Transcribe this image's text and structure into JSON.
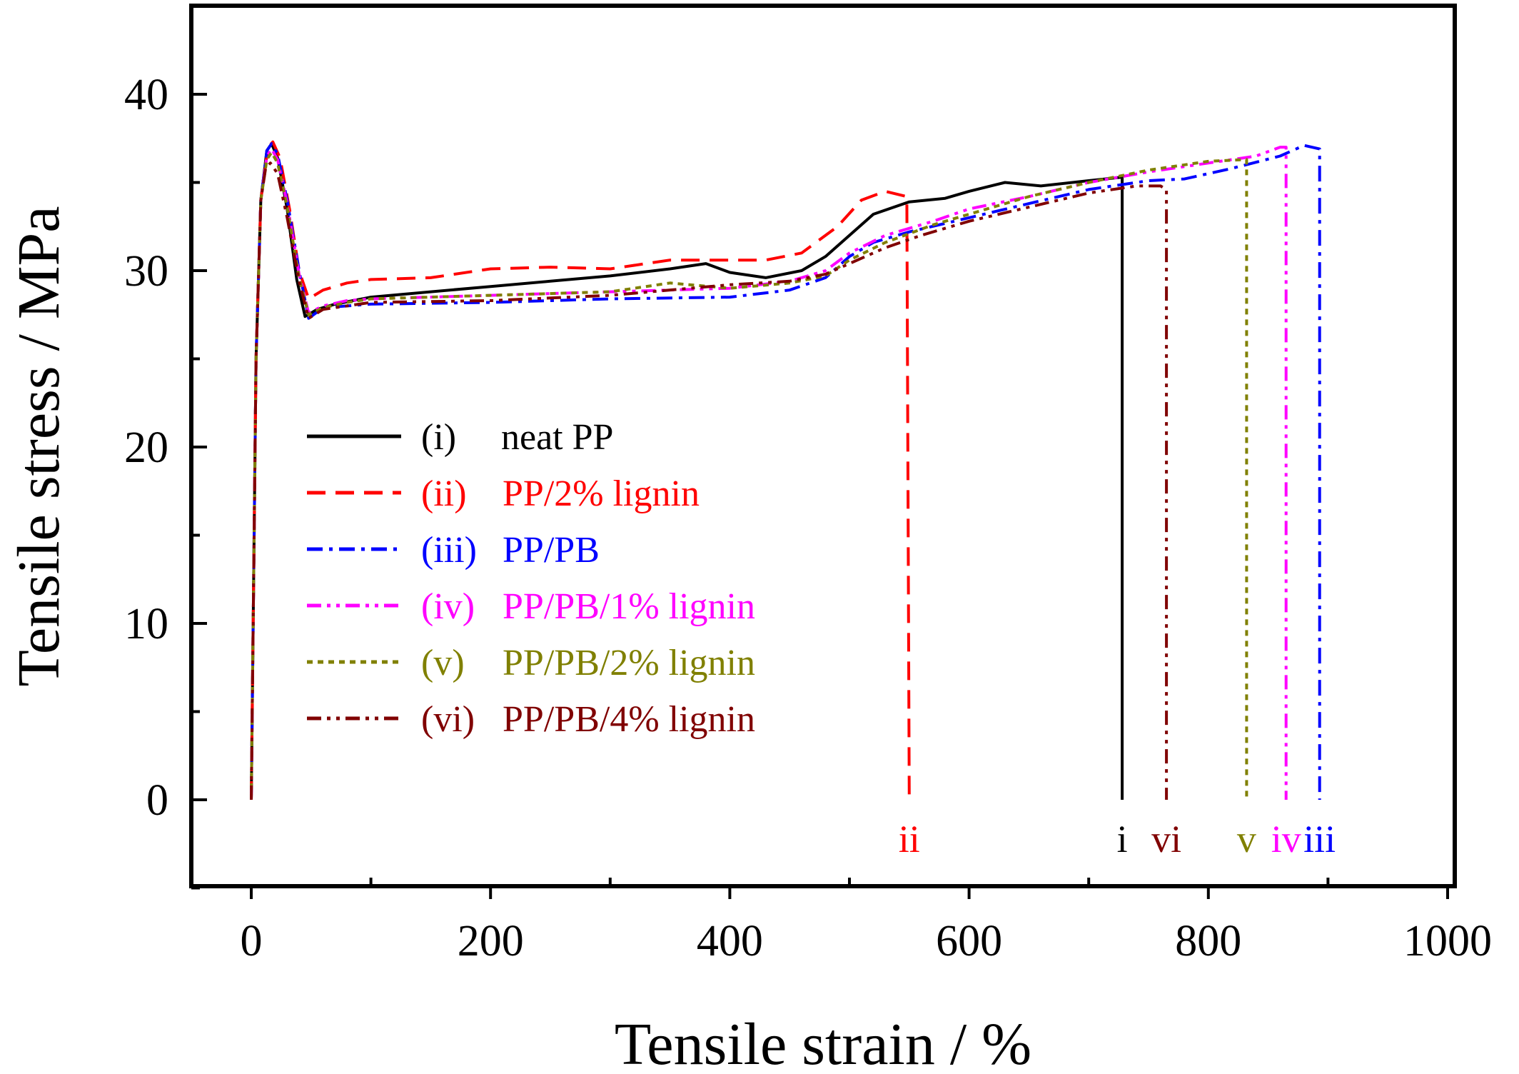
{
  "chart_data": {
    "type": "line",
    "title": "",
    "xlabel": "Tensile strain / %",
    "ylabel": "Tensile stress / MPa",
    "xlim": [
      -50,
      1000
    ],
    "ylim": [
      -5,
      45
    ],
    "xticks": [
      0,
      200,
      400,
      600,
      800,
      1000
    ],
    "xtick_labels": [
      "0",
      "200",
      "400",
      "600",
      "800",
      "1000"
    ],
    "yticks": [
      0,
      10,
      20,
      30,
      40
    ],
    "ytick_labels": [
      "0",
      "10",
      "20",
      "30",
      "40"
    ],
    "grid": false,
    "legend_position": "center-left",
    "series": [
      {
        "name": "neat PP",
        "legend_id": "(i)",
        "end_label": "i",
        "color": "#000000",
        "dash": "solid",
        "points": [
          [
            0,
            0
          ],
          [
            4,
            25
          ],
          [
            8,
            34
          ],
          [
            13,
            36.8
          ],
          [
            17,
            37.2
          ],
          [
            22,
            36.4
          ],
          [
            30,
            33.5
          ],
          [
            38,
            29.5
          ],
          [
            45,
            27.4
          ],
          [
            55,
            27.8
          ],
          [
            70,
            28.1
          ],
          [
            100,
            28.5
          ],
          [
            150,
            28.8
          ],
          [
            200,
            29.1
          ],
          [
            250,
            29.4
          ],
          [
            300,
            29.7
          ],
          [
            350,
            30.1
          ],
          [
            380,
            30.4
          ],
          [
            400,
            29.9
          ],
          [
            430,
            29.6
          ],
          [
            460,
            30
          ],
          [
            480,
            30.8
          ],
          [
            500,
            32
          ],
          [
            520,
            33.2
          ],
          [
            550,
            33.9
          ],
          [
            580,
            34.1
          ],
          [
            600,
            34.5
          ],
          [
            630,
            35
          ],
          [
            660,
            34.8
          ],
          [
            700,
            35.1
          ],
          [
            728,
            35.3
          ],
          [
            728,
            0
          ]
        ]
      },
      {
        "name": "PP/2% lignin",
        "legend_id": "(ii)",
        "end_label": "ii",
        "color": "#ff0000",
        "dash": "dashed",
        "points": [
          [
            0,
            0
          ],
          [
            4,
            25
          ],
          [
            8,
            34
          ],
          [
            14,
            37
          ],
          [
            18,
            37.3
          ],
          [
            24,
            36.4
          ],
          [
            32,
            33.5
          ],
          [
            40,
            30
          ],
          [
            48,
            28.4
          ],
          [
            60,
            28.9
          ],
          [
            80,
            29.3
          ],
          [
            100,
            29.5
          ],
          [
            150,
            29.6
          ],
          [
            200,
            30.1
          ],
          [
            250,
            30.2
          ],
          [
            300,
            30.1
          ],
          [
            350,
            30.6
          ],
          [
            400,
            30.6
          ],
          [
            430,
            30.6
          ],
          [
            460,
            31
          ],
          [
            490,
            32.5
          ],
          [
            510,
            34
          ],
          [
            530,
            34.5
          ],
          [
            548,
            34.2
          ],
          [
            550,
            0
          ]
        ]
      },
      {
        "name": "PP/PB",
        "legend_id": "(iii)",
        "end_label": "iii",
        "color": "#0000ff",
        "dash": "dashdot",
        "points": [
          [
            0,
            0
          ],
          [
            4,
            25
          ],
          [
            8,
            34
          ],
          [
            13,
            36.8
          ],
          [
            17,
            37.2
          ],
          [
            22,
            36.6
          ],
          [
            30,
            34
          ],
          [
            40,
            30
          ],
          [
            48,
            27.3
          ],
          [
            60,
            27.9
          ],
          [
            80,
            28
          ],
          [
            100,
            28.1
          ],
          [
            200,
            28.2
          ],
          [
            300,
            28.4
          ],
          [
            400,
            28.5
          ],
          [
            450,
            28.9
          ],
          [
            480,
            29.6
          ],
          [
            500,
            30.8
          ],
          [
            520,
            31.6
          ],
          [
            550,
            32.2
          ],
          [
            600,
            33
          ],
          [
            650,
            33.8
          ],
          [
            700,
            34.6
          ],
          [
            750,
            35.1
          ],
          [
            780,
            35.2
          ],
          [
            820,
            35.8
          ],
          [
            860,
            36.5
          ],
          [
            880,
            37.1
          ],
          [
            893,
            36.9
          ],
          [
            893,
            0
          ]
        ]
      },
      {
        "name": "PP/PB/1% lignin",
        "legend_id": "(iv)",
        "end_label": "iv",
        "color": "#ff00ff",
        "dash": "dashdotdot",
        "points": [
          [
            0,
            0
          ],
          [
            4,
            25
          ],
          [
            8,
            34
          ],
          [
            13,
            36.5
          ],
          [
            17,
            36.9
          ],
          [
            22,
            36.3
          ],
          [
            30,
            33.8
          ],
          [
            40,
            29.8
          ],
          [
            48,
            27.6
          ],
          [
            60,
            28
          ],
          [
            80,
            28.3
          ],
          [
            100,
            28.4
          ],
          [
            200,
            28.6
          ],
          [
            300,
            28.8
          ],
          [
            400,
            29
          ],
          [
            450,
            29.4
          ],
          [
            480,
            30
          ],
          [
            500,
            31
          ],
          [
            530,
            32
          ],
          [
            570,
            32.8
          ],
          [
            600,
            33.5
          ],
          [
            650,
            34.2
          ],
          [
            700,
            35
          ],
          [
            750,
            35.6
          ],
          [
            800,
            36.1
          ],
          [
            840,
            36.5
          ],
          [
            860,
            37
          ],
          [
            865,
            37
          ],
          [
            865,
            0
          ]
        ]
      },
      {
        "name": "PP/PB/2% lignin",
        "legend_id": "(v)",
        "end_label": "v",
        "color": "#808000",
        "dash": "dotted",
        "points": [
          [
            0,
            0
          ],
          [
            4,
            25
          ],
          [
            8,
            34
          ],
          [
            13,
            36.3
          ],
          [
            17,
            36.7
          ],
          [
            22,
            36.1
          ],
          [
            30,
            33.6
          ],
          [
            40,
            29.6
          ],
          [
            48,
            27.5
          ],
          [
            60,
            27.9
          ],
          [
            80,
            28.2
          ],
          [
            100,
            28.4
          ],
          [
            200,
            28.6
          ],
          [
            300,
            28.8
          ],
          [
            350,
            29.3
          ],
          [
            400,
            29
          ],
          [
            450,
            29.3
          ],
          [
            480,
            29.7
          ],
          [
            500,
            30.6
          ],
          [
            530,
            31.6
          ],
          [
            570,
            32.6
          ],
          [
            600,
            33.2
          ],
          [
            650,
            34.2
          ],
          [
            700,
            35
          ],
          [
            750,
            35.7
          ],
          [
            800,
            36.2
          ],
          [
            832,
            36.3
          ],
          [
            832,
            0
          ]
        ]
      },
      {
        "name": "PP/PB/4% lignin",
        "legend_id": "(vi)",
        "end_label": "vi",
        "color": "#800000",
        "dash": "dashdotdot",
        "points": [
          [
            0,
            0
          ],
          [
            4,
            25
          ],
          [
            8,
            34
          ],
          [
            12,
            35.8
          ],
          [
            16,
            36.1
          ],
          [
            22,
            35.5
          ],
          [
            30,
            33
          ],
          [
            40,
            29.4
          ],
          [
            48,
            27.3
          ],
          [
            60,
            27.8
          ],
          [
            80,
            28
          ],
          [
            100,
            28.2
          ],
          [
            200,
            28.3
          ],
          [
            300,
            28.6
          ],
          [
            400,
            29.2
          ],
          [
            450,
            29.4
          ],
          [
            480,
            29.8
          ],
          [
            500,
            30.4
          ],
          [
            530,
            31.3
          ],
          [
            560,
            32
          ],
          [
            600,
            32.8
          ],
          [
            650,
            33.6
          ],
          [
            700,
            34.4
          ],
          [
            740,
            34.8
          ],
          [
            760,
            34.8
          ],
          [
            765,
            34.6
          ],
          [
            765,
            0
          ]
        ]
      }
    ]
  }
}
